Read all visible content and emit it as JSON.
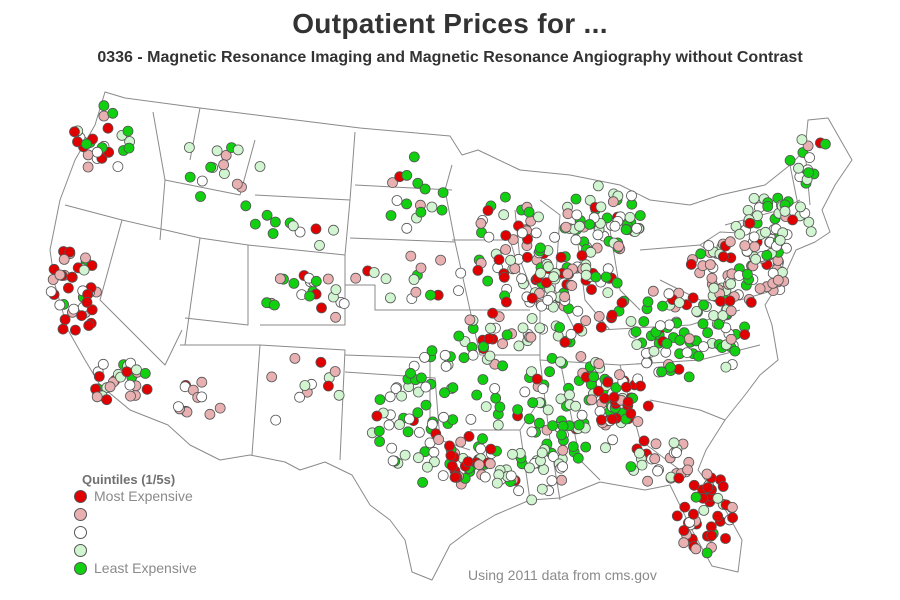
{
  "title": "Outpatient Prices for ...",
  "subtitle": "0336 - Magnetic Resonance Imaging and Magnetic Resonance Angiography without Contrast",
  "legend": {
    "title": "Quintiles (1/5s)",
    "items": [
      {
        "label": "Most Expensive",
        "color": "#e00000"
      },
      {
        "label": "",
        "color": "#e8b0b0"
      },
      {
        "label": "",
        "color": "#ffffff"
      },
      {
        "label": "",
        "color": "#d0f5d0"
      },
      {
        "label": "Least Expensive",
        "color": "#10d010"
      }
    ]
  },
  "source_note": "Using 2011 data from cms.gov",
  "map": {
    "region": "Continental United States",
    "boundary_color": "#8a8a8a",
    "marker_outline": "#555555",
    "hospitals_approx": 900
  }
}
